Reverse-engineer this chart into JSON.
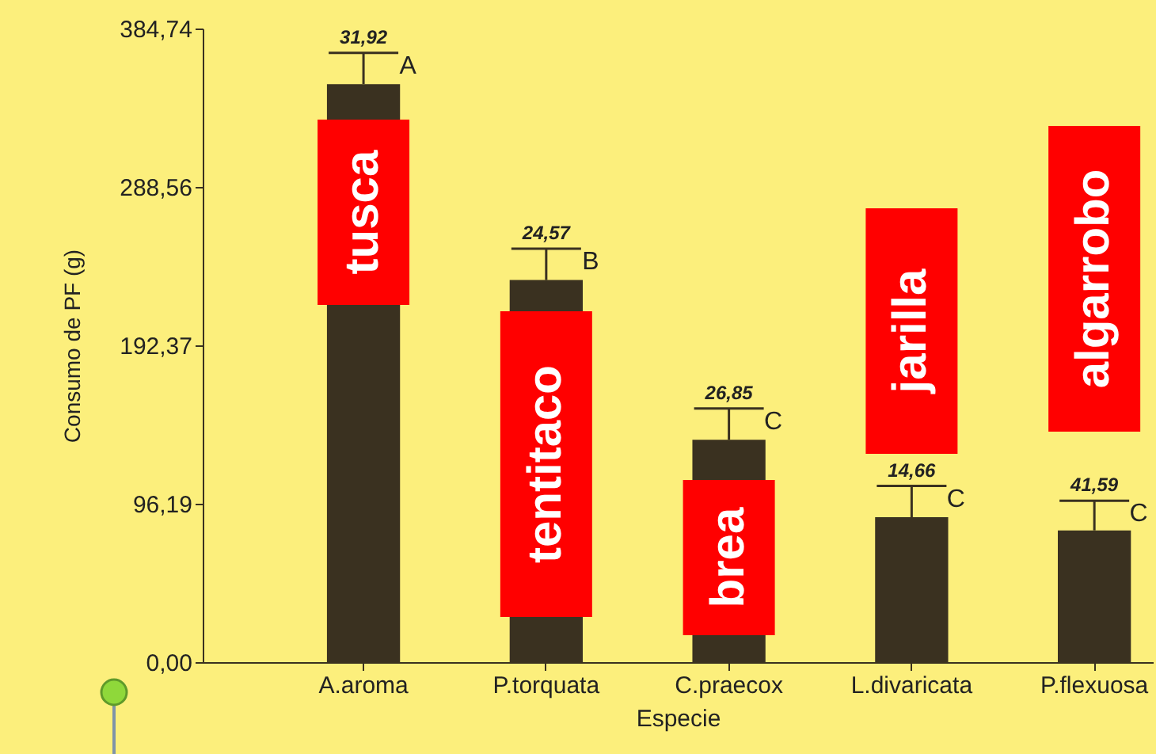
{
  "chart_data": {
    "type": "bar",
    "xlabel": "Especie",
    "ylabel": "Consumo de PF (g)",
    "categories": [
      "A.aroma",
      "P.torquata",
      "C.praecox",
      "L.divaricata",
      "P.flexuosa"
    ],
    "values": [
      351,
      232,
      135,
      88,
      80
    ],
    "color": "#3a3120",
    "errors": [
      [
        351,
        370
      ],
      [
        232,
        251
      ],
      [
        135,
        154
      ],
      [
        88,
        107
      ],
      [
        80,
        98
      ]
    ],
    "ylim": [
      0,
      384.74
    ],
    "yticks": [
      {
        "value": 0,
        "label": "0,00"
      },
      {
        "value": 96.19,
        "label": "96,19"
      },
      {
        "value": 192.37,
        "label": "192,37"
      },
      {
        "value": 288.56,
        "label": "288,56"
      },
      {
        "value": 384.74,
        "label": "384,74"
      }
    ],
    "annotations": [
      {
        "text": "31,92",
        "x": "A.aroma",
        "y": 370
      },
      {
        "text": "24,57",
        "x": "P.torquata",
        "y": 251
      },
      {
        "text": "26,85",
        "x": "C.praecox",
        "y": 154
      },
      {
        "text": "14,66",
        "x": "L.divaricata",
        "y": 107
      },
      {
        "text": "41,59",
        "x": "P.flexuosa",
        "y": 98
      },
      {
        "text": "A",
        "x": "A.aroma",
        "y": 370
      },
      {
        "text": "B",
        "x": "P.torquata",
        "y": 251
      },
      {
        "text": "C",
        "x": "C.praecox",
        "y": 154
      },
      {
        "text": "C",
        "x": "L.divaricata",
        "y": 107
      },
      {
        "text": "C",
        "x": "P.flexuosa",
        "y": 98
      },
      "tusca",
      "tentitaco",
      "brea",
      "jarilla",
      "algarrobo"
    ],
    "grid": false
  }
}
